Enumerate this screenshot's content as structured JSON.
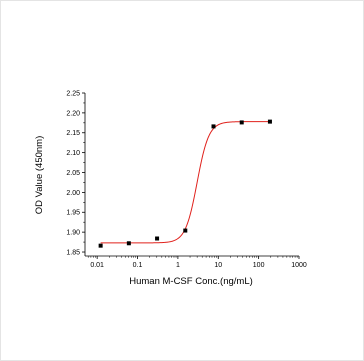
{
  "chart_data": {
    "type": "scatter",
    "xlabel": "Human M-CSF Conc.(ng/mL)",
    "ylabel": "OD Value (450nm)",
    "x_scale": "log",
    "xlim": [
      0.005,
      1000
    ],
    "ylim": [
      1.84,
      2.25
    ],
    "x_ticks": [
      {
        "value": 0.01,
        "label": "0.01"
      },
      {
        "value": 0.1,
        "label": "0.1"
      },
      {
        "value": 1,
        "label": "1"
      },
      {
        "value": 10,
        "label": "10"
      },
      {
        "value": 100,
        "label": "100"
      },
      {
        "value": 1000,
        "label": "1000"
      }
    ],
    "y_ticks": [
      {
        "value": 1.85,
        "label": "1.85"
      },
      {
        "value": 1.9,
        "label": "1.90"
      },
      {
        "value": 1.95,
        "label": "1.95"
      },
      {
        "value": 2.0,
        "label": "2.00"
      },
      {
        "value": 2.05,
        "label": "2.05"
      },
      {
        "value": 2.1,
        "label": "2.10"
      },
      {
        "value": 2.15,
        "label": "2.15"
      },
      {
        "value": 2.2,
        "label": "2.20"
      },
      {
        "value": 2.25,
        "label": "2.25"
      }
    ],
    "points": [
      {
        "x": 0.0122,
        "y": 1.866
      },
      {
        "x": 0.061,
        "y": 1.872
      },
      {
        "x": 0.305,
        "y": 1.884
      },
      {
        "x": 1.525,
        "y": 1.904
      },
      {
        "x": 7.625,
        "y": 2.166
      },
      {
        "x": 38.125,
        "y": 2.176
      },
      {
        "x": 190.6,
        "y": 2.178
      }
    ],
    "fit_curve": {
      "type": "4PL",
      "bottom": 1.873,
      "top": 2.178,
      "ec50": 3.0,
      "hill": 3.0
    },
    "colors": {
      "points": "#000000",
      "fit": "#e0201b",
      "axis": "#000000"
    },
    "grid": false,
    "legend": "none"
  }
}
